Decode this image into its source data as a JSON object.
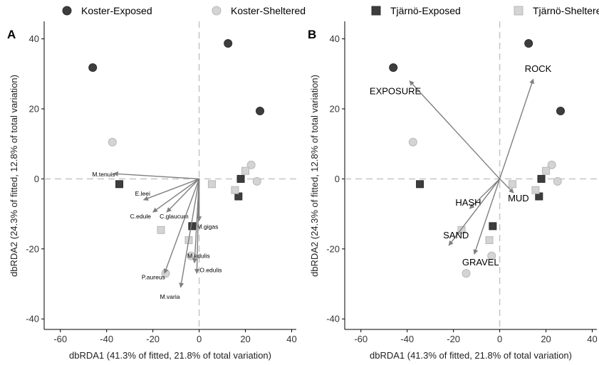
{
  "legend": {
    "items": [
      {
        "label": "Koster-Exposed",
        "shape": "circle",
        "color": "#3d3d3d"
      },
      {
        "label": "Koster-Sheltered",
        "shape": "circle",
        "color": "#d4d4d4"
      },
      {
        "label": "Tjärnö-Exposed",
        "shape": "square",
        "color": "#3d3d3d"
      },
      {
        "label": "Tjärnö-Sheltered",
        "shape": "square",
        "color": "#d4d4d4"
      }
    ]
  },
  "chart_data": [
    {
      "type": "scatter",
      "panel_label": "A",
      "xlabel": "dbRDA1 (41.3% of fitted, 21.8% of total variation)",
      "ylabel": "dbRDA2 (24.3% of fitted, 12.8% of total variation)",
      "xlim": [
        -67,
        42
      ],
      "ylim": [
        -43,
        45
      ],
      "xticks": [
        -60,
        -40,
        -20,
        0,
        20,
        40
      ],
      "yticks": [
        -40,
        -20,
        0,
        20,
        40
      ],
      "reference_lines": {
        "x": 0,
        "y": 0,
        "style": "dashed"
      },
      "arrow_color": "#7f7f7f",
      "series": [
        {
          "name": "Koster-Exposed",
          "points": [
            {
              "x": -46,
              "y": 31.8
            },
            {
              "x": 12.5,
              "y": 38.7
            },
            {
              "x": 26.3,
              "y": 19.4
            }
          ]
        },
        {
          "name": "Koster-Sheltered",
          "points": [
            {
              "x": -37.5,
              "y": 10.5
            },
            {
              "x": 22.5,
              "y": 4
            },
            {
              "x": 25,
              "y": -0.7
            },
            {
              "x": -3.5,
              "y": -22
            },
            {
              "x": -14.5,
              "y": -27
            }
          ]
        },
        {
          "name": "Tjärnö-Exposed",
          "points": [
            {
              "x": -34.5,
              "y": -1.5
            },
            {
              "x": 18,
              "y": 0
            },
            {
              "x": 17,
              "y": -5
            },
            {
              "x": -3,
              "y": -13.5
            }
          ]
        },
        {
          "name": "Tjärnö-Sheltered",
          "points": [
            {
              "x": 20,
              "y": 2.3
            },
            {
              "x": 5.5,
              "y": -1.5
            },
            {
              "x": 15.5,
              "y": -3.2
            },
            {
              "x": -16.5,
              "y": -14.6
            },
            {
              "x": -4.5,
              "y": -17.5
            }
          ]
        }
      ],
      "vectors": [
        {
          "label": "M.tenuis",
          "x": -37,
          "y": 1.5
        },
        {
          "label": "E.leei",
          "x": -24,
          "y": -6
        },
        {
          "label": "C.edule",
          "x": -20,
          "y": -9.5
        },
        {
          "label": "C.glaucum",
          "x": -14,
          "y": -9.5
        },
        {
          "label": "M.gigas",
          "x": 0,
          "y": -12
        },
        {
          "label": "M.edulis",
          "x": -2,
          "y": -24
        },
        {
          "label": "O.edulis",
          "x": -1,
          "y": -27
        },
        {
          "label": "P.aureus",
          "x": -15,
          "y": -27
        },
        {
          "label": "M.varia",
          "x": -8,
          "y": -31
        }
      ]
    },
    {
      "type": "scatter",
      "panel_label": "B",
      "xlabel": "dbRDA1 (41.3% of fitted, 21.8% of total variation)",
      "ylabel": "dbRDA2 (24.3% of fitted, 12.8% of total variation)",
      "xlim": [
        -67,
        42
      ],
      "ylim": [
        -43,
        45
      ],
      "xticks": [
        -60,
        -40,
        -20,
        0,
        20,
        40
      ],
      "yticks": [
        -40,
        -20,
        0,
        20,
        40
      ],
      "reference_lines": {
        "x": 0,
        "y": 0,
        "style": "dashed"
      },
      "arrow_color": "#7f7f7f",
      "series": [
        {
          "name": "Koster-Exposed",
          "points": [
            {
              "x": -46,
              "y": 31.8
            },
            {
              "x": 12.5,
              "y": 38.7
            },
            {
              "x": 26.3,
              "y": 19.4
            }
          ]
        },
        {
          "name": "Koster-Sheltered",
          "points": [
            {
              "x": -37.5,
              "y": 10.5
            },
            {
              "x": 22.5,
              "y": 4
            },
            {
              "x": 25,
              "y": -0.7
            },
            {
              "x": -3.5,
              "y": -22
            },
            {
              "x": -14.5,
              "y": -27
            }
          ]
        },
        {
          "name": "Tjärnö-Exposed",
          "points": [
            {
              "x": -34.5,
              "y": -1.5
            },
            {
              "x": 18,
              "y": 0
            },
            {
              "x": 17,
              "y": -5
            },
            {
              "x": -3,
              "y": -13.5
            }
          ]
        },
        {
          "name": "Tjärnö-Sheltered",
          "points": [
            {
              "x": 20,
              "y": 2.3
            },
            {
              "x": 5.5,
              "y": -1.5
            },
            {
              "x": 15.5,
              "y": -3.2
            },
            {
              "x": -16.5,
              "y": -14.6
            },
            {
              "x": -4.5,
              "y": -17.5
            }
          ]
        }
      ],
      "vectors": [
        {
          "label": "EXPOSURE",
          "x": -39,
          "y": 28
        },
        {
          "label": "ROCK",
          "x": 14.5,
          "y": 28.5
        },
        {
          "label": "HASH",
          "x": -13,
          "y": -8.5
        },
        {
          "label": "MUD",
          "x": 6,
          "y": -4
        },
        {
          "label": "SAND",
          "x": -22,
          "y": -19
        },
        {
          "label": "GRAVEL",
          "x": -11,
          "y": -21.5
        }
      ]
    }
  ]
}
